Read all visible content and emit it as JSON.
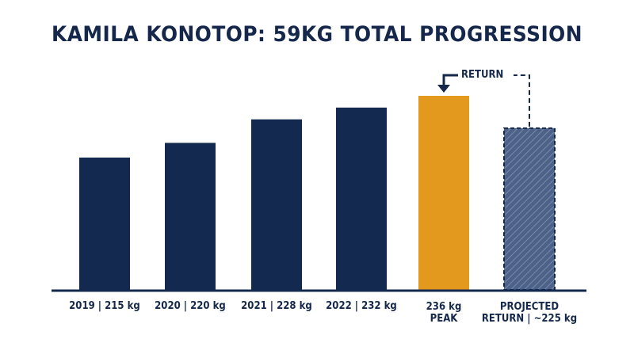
{
  "colors": {
    "title": "#15284b",
    "bar": "#13294f",
    "peak": "#e3991d",
    "projected": "#4d6288",
    "projected_border": "#15284b",
    "baseline": "#13294f"
  },
  "chart_data": {
    "type": "bar",
    "title": "KAMILA KONOTOP: 59KG TOTAL PROGRESSION",
    "xlabel": "",
    "ylabel": "",
    "grid": false,
    "ylim": [
      0,
      236
    ],
    "categories": [
      [
        "2019 | 215 kg"
      ],
      [
        "2020 | 220 kg"
      ],
      [
        "2021 | 228 kg"
      ],
      [
        "2022 | 232 kg"
      ],
      [
        "236 kg",
        "PEAK"
      ],
      [
        "PROJECTED",
        "RETURN | ~225 kg"
      ]
    ],
    "values": [
      215,
      220,
      228,
      232,
      236,
      225
    ],
    "styles": [
      "solid",
      "solid",
      "solid",
      "solid",
      "peak",
      "projected"
    ],
    "annotation": {
      "text": "RETURN",
      "from_bar": 5,
      "to_bar": 4
    }
  }
}
